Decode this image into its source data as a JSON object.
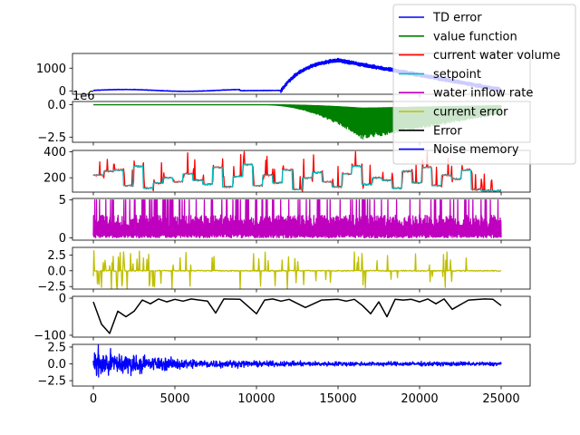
{
  "chart_data": [
    {
      "type": "line",
      "series": [
        {
          "name": "TD error",
          "color": "#0000ff",
          "shape": "td"
        }
      ],
      "x_range": [
        0,
        25000
      ],
      "ylim": [
        -150,
        1650
      ],
      "yticks": [
        0,
        1000
      ],
      "ytick_labels": [
        "0",
        "1000"
      ]
    },
    {
      "type": "line",
      "series": [
        {
          "name": "value function",
          "color": "#008000",
          "shape": "vf"
        }
      ],
      "x_range": [
        0,
        25000
      ],
      "ylim": [
        -2.9,
        0.25
      ],
      "yticks": [
        0,
        -2.5
      ],
      "ytick_labels": [
        "0.0",
        "−2.5"
      ],
      "offset_label": "1e6"
    },
    {
      "type": "line",
      "series": [
        {
          "name": "current water volume",
          "color": "#ff0000",
          "shape": "vol"
        },
        {
          "name": "setpoint",
          "color": "#00bfbf",
          "shape": "sp"
        }
      ],
      "x_range": [
        0,
        25000
      ],
      "ylim": [
        90,
        410
      ],
      "yticks": [
        200,
        400
      ],
      "ytick_labels": [
        "200",
        "400"
      ],
      "setpoint_levels": [
        220,
        250,
        260,
        140,
        290,
        120,
        160,
        200,
        170,
        230,
        180,
        150,
        280,
        130,
        210,
        300,
        140,
        220,
        160,
        260,
        110,
        200,
        240,
        170,
        130,
        230,
        290,
        150,
        200,
        180,
        120,
        250,
        160,
        280,
        140,
        220,
        190,
        260,
        110,
        100,
        100
      ]
    },
    {
      "type": "line",
      "series": [
        {
          "name": "water inflow rate",
          "color": "#bf00bf",
          "shape": "inflow"
        }
      ],
      "x_range": [
        0,
        25000
      ],
      "ylim": [
        -0.3,
        5.2
      ],
      "yticks": [
        0,
        5
      ],
      "ytick_labels": [
        "0",
        "5"
      ]
    },
    {
      "type": "line",
      "series": [
        {
          "name": "current error",
          "color": "#bfbf00",
          "shape": "err"
        }
      ],
      "x_range": [
        0,
        25000
      ],
      "ylim": [
        -2.9,
        3.7
      ],
      "yticks": [
        -2.5,
        0,
        2.5
      ],
      "ytick_labels": [
        "−2.5",
        "0.0",
        "2.5"
      ]
    },
    {
      "type": "line",
      "series": [
        {
          "name": "Error",
          "color": "#000000",
          "shape": "points",
          "x": [
            0,
            500,
            1000,
            1500,
            2000,
            2500,
            3000,
            3500,
            4000,
            4500,
            5000,
            5500,
            6000,
            6500,
            7000,
            7500,
            8000,
            9000,
            10000,
            10500,
            11000,
            11500,
            12000,
            13000,
            14000,
            15000,
            15500,
            16000,
            16500,
            17000,
            17500,
            18000,
            18500,
            19000,
            19500,
            20000,
            20500,
            21000,
            21500,
            22000,
            23000,
            24000,
            24500,
            25000
          ],
          "y": [
            -10,
            -70,
            -95,
            -35,
            -50,
            -35,
            -5,
            -15,
            -2,
            -10,
            -3,
            -8,
            -2,
            -5,
            -8,
            -40,
            -2,
            -3,
            -42,
            -5,
            -2,
            -8,
            -3,
            -25,
            -5,
            -3,
            -8,
            -3,
            -20,
            -42,
            -10,
            -50,
            -3,
            -5,
            -3,
            -10,
            -2,
            -15,
            -2,
            -30,
            -5,
            -2,
            -3,
            -20
          ]
        }
      ],
      "x_range": [
        0,
        25000
      ],
      "ylim": [
        -105,
        5
      ],
      "yticks": [
        -100,
        0
      ],
      "ytick_labels": [
        "−100",
        "0"
      ]
    },
    {
      "type": "line",
      "series": [
        {
          "name": "Noise memory",
          "color": "#0000ff",
          "shape": "noise"
        }
      ],
      "x_range": [
        0,
        25000
      ],
      "ylim": [
        -3.3,
        2.9
      ],
      "yticks": [
        -2.5,
        0,
        2.5
      ],
      "ytick_labels": [
        "−2.5",
        "0.0",
        "2.5"
      ]
    }
  ],
  "shared_x": {
    "ticks": [
      0,
      5000,
      10000,
      15000,
      20000,
      25000
    ],
    "tick_labels": [
      "0",
      "5000",
      "10000",
      "15000",
      "20000",
      "25000"
    ]
  },
  "legend": {
    "placement": "top-right",
    "entries": [
      {
        "label": "TD error",
        "color": "#0000ff"
      },
      {
        "label": "value function",
        "color": "#008000"
      },
      {
        "label": "current water volume",
        "color": "#ff0000"
      },
      {
        "label": "setpoint",
        "color": "#00bfbf"
      },
      {
        "label": "water inflow rate",
        "color": "#bf00bf"
      },
      {
        "label": "current error",
        "color": "#bfbf00"
      },
      {
        "label": "Error",
        "color": "#000000"
      },
      {
        "label": "Noise memory",
        "color": "#0000ff"
      }
    ]
  }
}
